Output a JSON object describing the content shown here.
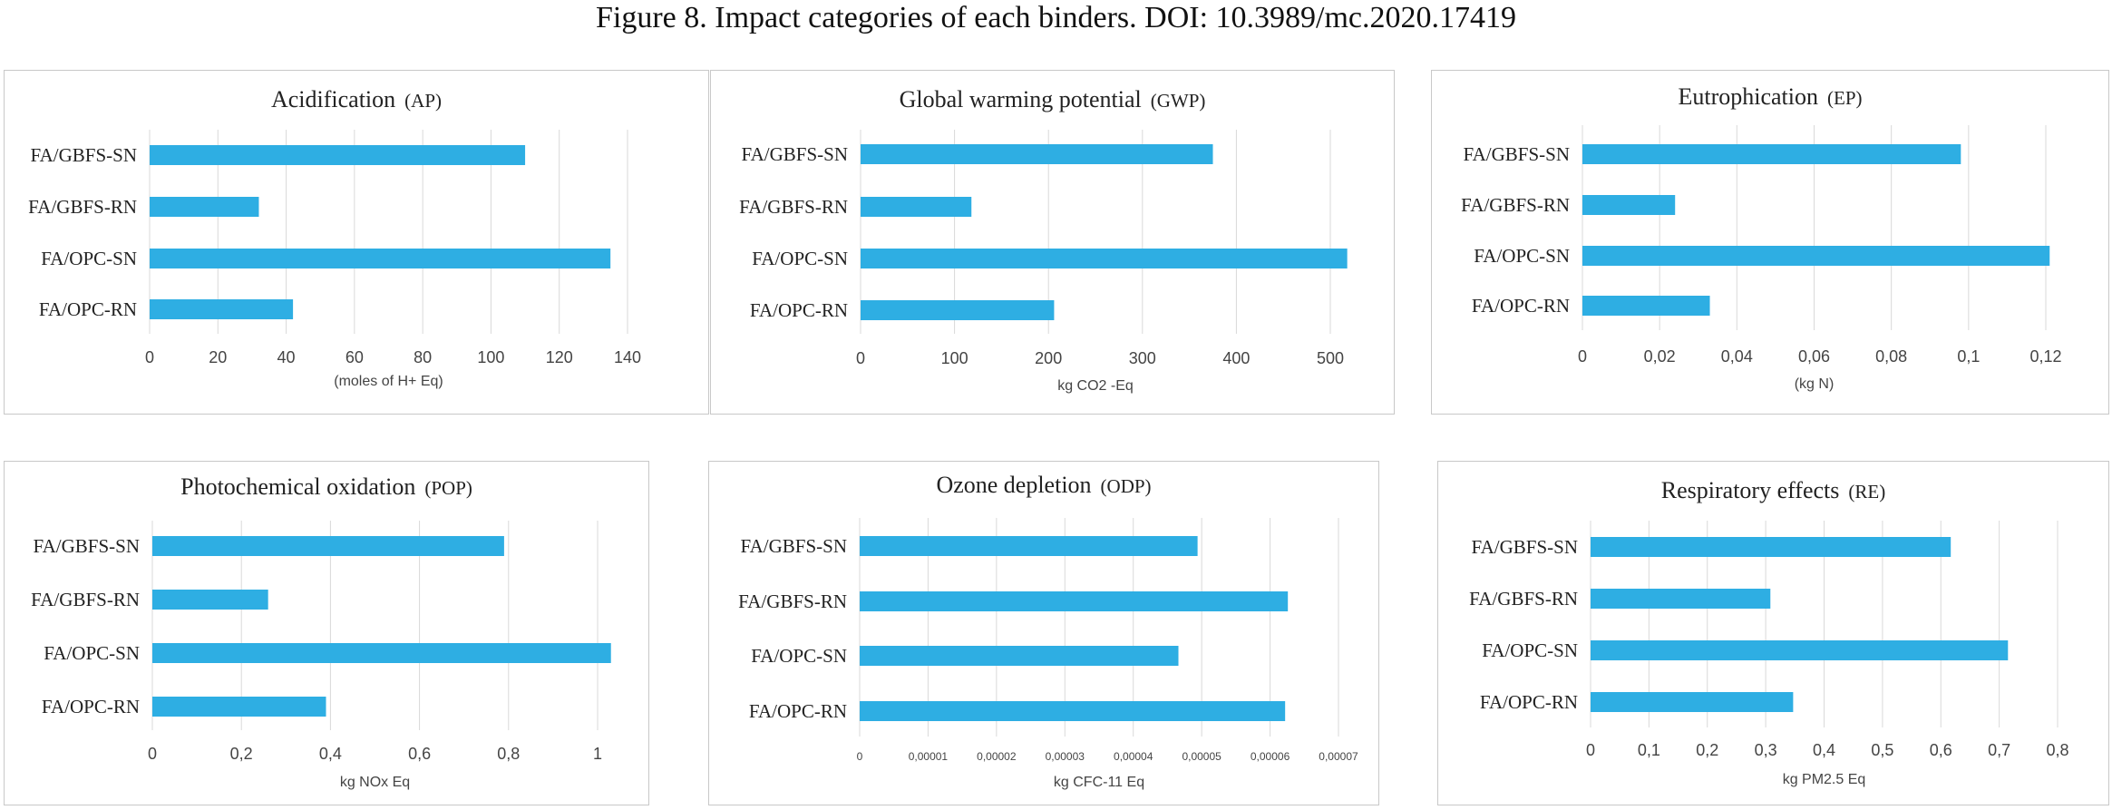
{
  "figure": {
    "title": "Figure 8.    Impact categories of each binders. DOI: 10.3989/mc.2020.17419"
  },
  "chart_data": [
    {
      "type": "bar",
      "orientation": "horizontal",
      "title": "Acidification",
      "abbr": "(AP)",
      "xlabel": "(moles of H+ Eq)",
      "categories": [
        "FA/GBFS-SN",
        "FA/GBFS-RN",
        "FA/OPC-SN",
        "FA/OPC-RN"
      ],
      "values": [
        110,
        32,
        135,
        42
      ],
      "xlim": [
        0,
        140
      ],
      "ticks": [
        0,
        20,
        40,
        60,
        80,
        100,
        120,
        140
      ],
      "tick_labels": [
        "0",
        "20",
        "40",
        "60",
        "80",
        "100",
        "120",
        "140"
      ],
      "grid": true,
      "color": "#2EAEE3"
    },
    {
      "type": "bar",
      "orientation": "horizontal",
      "title": "Global warming potential",
      "abbr": "(GWP)",
      "xlabel": "kg CO2 -Eq",
      "categories": [
        "FA/GBFS-SN",
        "FA/GBFS-RN",
        "FA/OPC-SN",
        "FA/OPC-RN"
      ],
      "values": [
        375,
        118,
        518,
        206
      ],
      "xlim": [
        0,
        500
      ],
      "ticks": [
        0,
        100,
        200,
        300,
        400,
        500
      ],
      "tick_labels": [
        "0",
        "100",
        "200",
        "300",
        "400",
        "500"
      ],
      "grid": true,
      "color": "#2EAEE3"
    },
    {
      "type": "bar",
      "orientation": "horizontal",
      "title": "Eutrophication",
      "abbr": "(EP)",
      "xlabel": "(kg N)",
      "categories": [
        "FA/GBFS-SN",
        "FA/GBFS-RN",
        "FA/OPC-SN",
        "FA/OPC-RN"
      ],
      "values": [
        0.098,
        0.024,
        0.121,
        0.033
      ],
      "xlim": [
        0,
        0.12
      ],
      "ticks": [
        0,
        0.02,
        0.04,
        0.06,
        0.08,
        0.1,
        0.12
      ],
      "tick_labels": [
        "0",
        "0,02",
        "0,04",
        "0,06",
        "0,08",
        "0,1",
        "0,12"
      ],
      "grid": true,
      "color": "#2EAEE3"
    },
    {
      "type": "bar",
      "orientation": "horizontal",
      "title": "Photochemical oxidation",
      "abbr": "(POP)",
      "xlabel": "kg NOx Eq",
      "categories": [
        "FA/GBFS-SN",
        "FA/GBFS-RN",
        "FA/OPC-SN",
        "FA/OPC-RN"
      ],
      "values": [
        0.79,
        0.26,
        1.03,
        0.39
      ],
      "xlim": [
        0,
        1
      ],
      "ticks": [
        0,
        0.2,
        0.4,
        0.6,
        0.8,
        1
      ],
      "tick_labels": [
        "0",
        "0,2",
        "0,4",
        "0,6",
        "0,8",
        "1"
      ],
      "grid": true,
      "color": "#2EAEE3"
    },
    {
      "type": "bar",
      "orientation": "horizontal",
      "title": "Ozone depletion",
      "abbr": "(ODP)",
      "xlabel": "kg CFC-11 Eq",
      "categories": [
        "FA/GBFS-SN",
        "FA/GBFS-RN",
        "FA/OPC-SN",
        "FA/OPC-RN"
      ],
      "values": [
        4.94e-05,
        6.26e-05,
        4.66e-05,
        6.22e-05
      ],
      "xlim": [
        0,
        7e-05
      ],
      "ticks": [
        0,
        1e-05,
        2e-05,
        3e-05,
        4e-05,
        5e-05,
        6e-05,
        7e-05
      ],
      "tick_labels": [
        "0",
        "0,00001",
        "0,00002",
        "0,00003",
        "0,00004",
        "0,00005",
        "0,00006",
        "0,00007"
      ],
      "grid": true,
      "color": "#2EAEE3"
    },
    {
      "type": "bar",
      "orientation": "horizontal",
      "title": "Respiratory effects",
      "abbr": "(RE)",
      "xlabel": "kg PM2.5 Eq",
      "categories": [
        "FA/GBFS-SN",
        "FA/GBFS-RN",
        "FA/OPC-SN",
        "FA/OPC-RN"
      ],
      "values": [
        0.617,
        0.308,
        0.715,
        0.347
      ],
      "xlim": [
        0,
        0.8
      ],
      "ticks": [
        0,
        0.1,
        0.2,
        0.3,
        0.4,
        0.5,
        0.6,
        0.7,
        0.8
      ],
      "tick_labels": [
        "0",
        "0,1",
        "0,2",
        "0,3",
        "0,4",
        "0,5",
        "0,6",
        "0,7",
        "0,8"
      ],
      "grid": true,
      "color": "#2EAEE3"
    }
  ]
}
